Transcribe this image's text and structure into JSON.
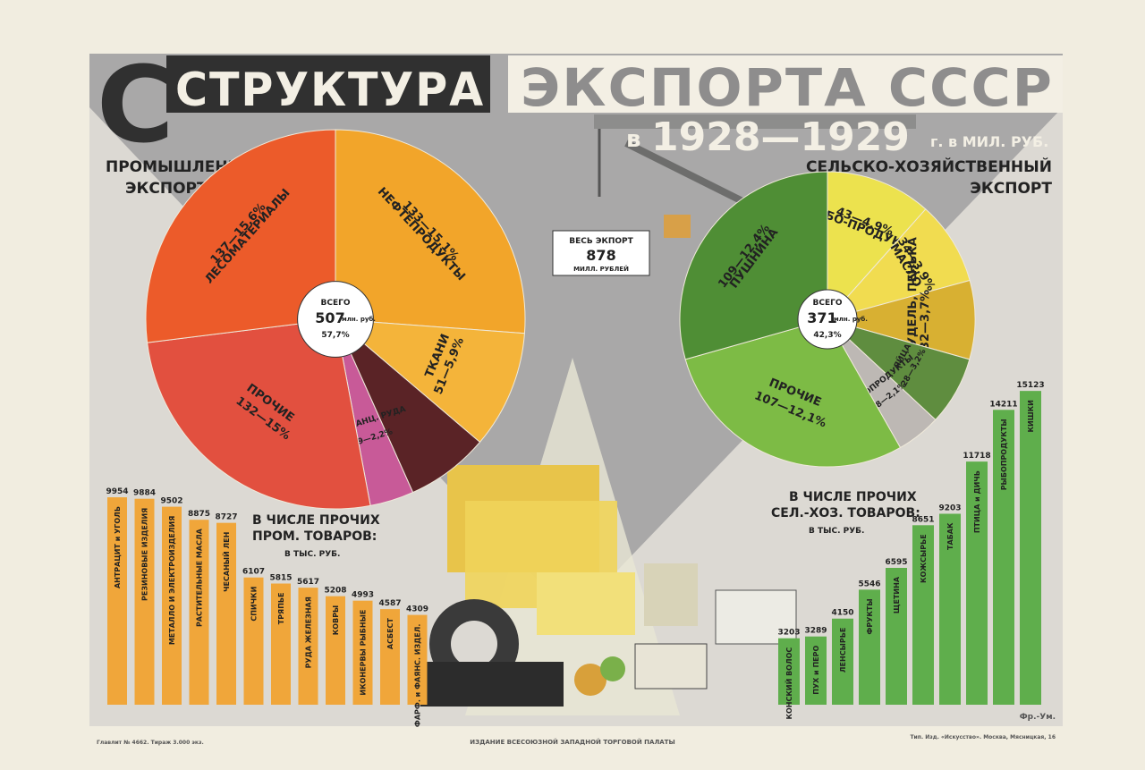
{
  "poster": {
    "title_part1": "СТРУКТУРА",
    "title_part2": "ЭКСПОРТА СССР",
    "subtitle_prefix": "в",
    "subtitle_years": "1928—1929",
    "subtitle_suffix": "г. в МИЛ. РУБ.",
    "total_line1": "ВЕСЬ ЭКПОРТ",
    "total_value": "878",
    "total_line3": "МИЛЛ. РУБЛЕЙ",
    "footer_left": "Главлит № 4662. Тираж 3.000 экз.",
    "footer_center": "ИЗДАНИЕ ВСЕСОЮЗНОЙ ЗАПАДНОЙ ТОРГОВОЙ ПАЛАТЫ",
    "footer_right": "Тип. Изд. «Искусство». Москва, Мясницкая, 16",
    "signature": "Фр.-Ум.",
    "colors": {
      "gray_band": "#a9a8a8",
      "title_dark": "#303030",
      "title_light": "#f3efe4",
      "panel": "#d7d5d1"
    }
  },
  "chart_data": [
    {
      "type": "pie",
      "id": "industrial",
      "title_line1": "ПРОМЫШЛЕННЫЙ",
      "title_line2": "ЭКСПОРТ",
      "center_line1": "ВСЕГО",
      "center_value": "507",
      "center_unit": "млн. руб.",
      "center_pct": "57,7%",
      "slices": [
        {
          "label": "НЕФТЕПРОДУКТЫ",
          "value_label": "133—15,1%",
          "value": 133,
          "color": "#f2a52a"
        },
        {
          "label": "ТКАНИ",
          "value_label": "51—5,9%",
          "value": 51,
          "color": "#f4b43a"
        },
        {
          "label": "",
          "value_label": "",
          "value": 36,
          "color": "#5a2326"
        },
        {
          "label": "МАРГАНЦ. РУДА",
          "value_label": "19—2,2%",
          "value": 19,
          "color": "#c85a98"
        },
        {
          "label": "ПРОЧИЕ",
          "value_label": "132—15%",
          "value": 132,
          "color": "#e2503f"
        },
        {
          "label": "ЛЕСОМАТЕРИАЛЫ",
          "value_label": "137—15,6%",
          "value": 137,
          "color": "#ec5b2a"
        }
      ]
    },
    {
      "type": "pie",
      "id": "agricultural",
      "title_line1": "СЕЛЬСКО-ХОЗЯЙСТВЕННЫЙ",
      "title_line2": "ЭКСПОРТ",
      "center_line1": "ВСЕГО",
      "center_value": "371",
      "center_unit": "млн. руб.",
      "center_pct": "42,3%",
      "slices": [
        {
          "label": "ХЛЕБО-ПРОДУКТЫ",
          "value_label": "43—4,9%",
          "value": 43,
          "color": "#ece24e"
        },
        {
          "label": "МАСЛО",
          "value_label": "34—3,9%",
          "value": 34,
          "color": "#f1dc50"
        },
        {
          "label": "ЛЕН, КУДЕЛЬ, ПЕНЬКА",
          "value_label": "32—3,7%",
          "value": 32,
          "color": "#d8b032"
        },
        {
          "label": "ЯЙЦА",
          "value_label": "28—3,2%",
          "value": 28,
          "color": "#5f8d3f"
        },
        {
          "label": "МЯСОПРОДУКТЫ",
          "value_label": "18—2,1%",
          "value": 18,
          "color": "#bdb8b4"
        },
        {
          "label": "ПРОЧИЕ",
          "value_label": "107—12,1%",
          "value": 107,
          "color": "#7dbb45"
        },
        {
          "label": "ПУШНИНА",
          "value_label": "109—12,4%",
          "value": 109,
          "color": "#4f8e35"
        }
      ]
    },
    {
      "type": "bar",
      "id": "industrial_other",
      "title_line1": "В ЧИСЛЕ ПРОЧИХ",
      "title_line2": "ПРОМ. ТОВАРОВ:",
      "unit": "В ТЫС. РУБ.",
      "bar_color": "#f0a63a",
      "categories": [
        "АНТРАЦИТ и УГОЛЬ",
        "РЕЗИНОВЫЕ ИЗДЕЛИЯ",
        "МЕТАЛЛО И ЭЛЕКТРОИЗДЕЛИЯ",
        "РАСТИТЕЛЬНЫЕ МАСЛА",
        "ЧЕСАНЫЙ ЛЕН",
        "СПИЧКИ",
        "ТРЯПЬЕ",
        "РУДА ЖЕЛЕЗНАЯ",
        "КОВРЫ",
        "ИКОНЕРВЫ РЫБНЫЕ",
        "АСБЕСТ",
        "ФАРФ. и ФАЯНС. ИЗДЕЛ."
      ],
      "values": [
        9954,
        9884,
        9502,
        8875,
        8727,
        6107,
        5815,
        5617,
        5208,
        4993,
        4587,
        4309
      ]
    },
    {
      "type": "bar",
      "id": "agricultural_other",
      "title_line1": "В ЧИСЛЕ ПРОЧИХ",
      "title_line2": "СЕЛ.-ХОЗ. ТОВАРОВ:",
      "unit": "В ТЫС. РУБ.",
      "bar_color": "#5fae4c",
      "categories": [
        "КОНСКИЙ ВОЛОС",
        "ПУХ и ПЕРО",
        "ЛЕНСЫРЬЕ",
        "ФРУКТЫ",
        "ЩЕТИНА",
        "КОЖСЫРЬЕ",
        "ТАБАК",
        "ПТИЦА и ДИЧЬ",
        "РЫБОПРОДУКТЫ",
        "КИШКИ"
      ],
      "values": [
        3203,
        3289,
        4150,
        5546,
        6595,
        8651,
        9203,
        11718,
        14211,
        15123
      ]
    }
  ]
}
